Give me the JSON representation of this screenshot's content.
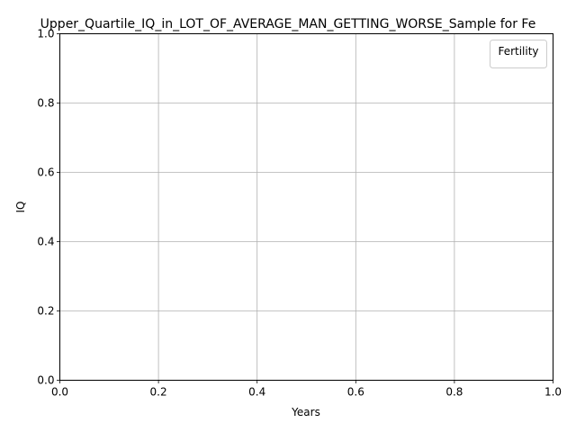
{
  "chart_data": {
    "type": "line",
    "title": "Upper_Quartile_IQ_in_LOT_OF_AVERAGE_MAN_GETTING_WORSE_Sample for Fe",
    "xlabel": "Years",
    "ylabel": "IQ",
    "xlim": [
      0.0,
      1.0
    ],
    "ylim": [
      0.0,
      1.0
    ],
    "x_ticks": [
      "0.0",
      "0.2",
      "0.4",
      "0.6",
      "0.8",
      "1.0"
    ],
    "y_ticks": [
      "0.0",
      "0.2",
      "0.4",
      "0.6",
      "0.8",
      "1.0"
    ],
    "grid": true,
    "legend": {
      "title": "Fertility",
      "placement": "top-right",
      "entries": []
    },
    "series": [],
    "colors": {
      "grid": "#b0b0b0",
      "axis": "#000000",
      "legend_border": "#cccccc"
    }
  }
}
